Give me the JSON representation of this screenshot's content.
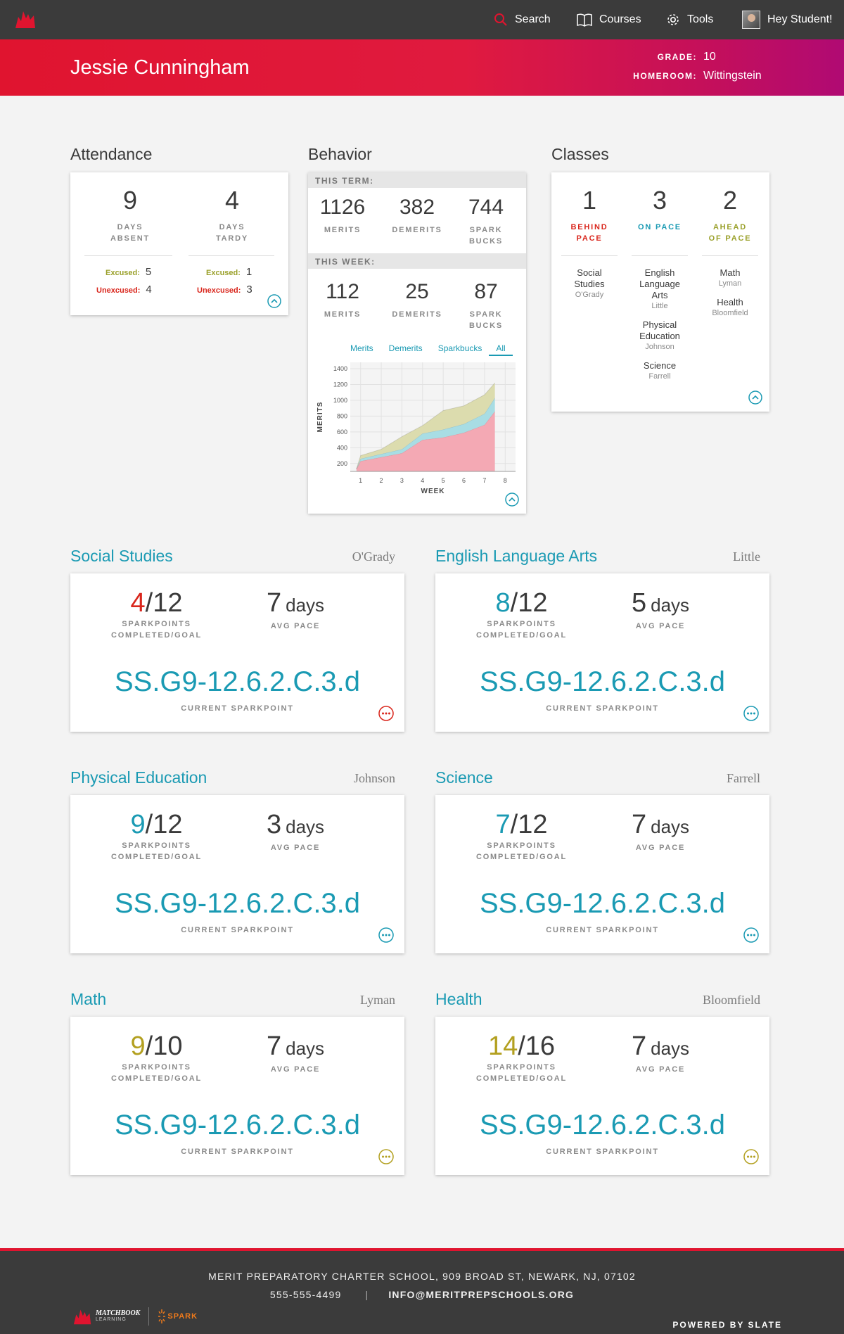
{
  "nav": {
    "search_label": "Search",
    "courses_label": "Courses",
    "tools_label": "Tools",
    "user_label": "Hey Student!"
  },
  "student": {
    "name": "Jessie Cunningham",
    "grade_label": "GRADE:",
    "grade": "10",
    "homeroom_label": "HOMEROOM:",
    "homeroom": "Wittingstein"
  },
  "attendance": {
    "title": "Attendance",
    "absent": {
      "value": "9",
      "label_1": "DAYS",
      "label_2": "ABSENT",
      "excused_label": "Excused:",
      "excused": "5",
      "unexcused_label": "Unexcused:",
      "unexcused": "4"
    },
    "tardy": {
      "value": "4",
      "label_1": "DAYS",
      "label_2": "TARDY",
      "excused_label": "Excused:",
      "excused": "1",
      "unexcused_label": "Unexcused:",
      "unexcused": "3"
    }
  },
  "behavior": {
    "title": "Behavior",
    "term_label": "THIS TERM:",
    "term": {
      "merits": "1126",
      "demerits": "382",
      "spark": "744"
    },
    "week_label": "THIS WEEK:",
    "week": {
      "merits": "112",
      "demerits": "25",
      "spark": "87"
    },
    "merits_label": "MERITS",
    "demerits_label": "DEMERITS",
    "spark_label_1": "SPARK",
    "spark_label_2": "BUCKS",
    "tabs": [
      "Merits",
      "Demerits",
      "Sparkbucks",
      "All"
    ]
  },
  "chart_data": {
    "type": "area",
    "stacked": true,
    "title": "",
    "xlabel": "WEEK",
    "ylabel": "MERITS",
    "x": [
      0.8,
      1,
      2,
      3,
      4,
      5,
      6,
      7,
      7.5
    ],
    "xticks": [
      1,
      2,
      3,
      4,
      5,
      6,
      7,
      8
    ],
    "yticks": [
      200,
      400,
      600,
      800,
      1000,
      1200,
      1400
    ],
    "ylim": [
      100,
      1480
    ],
    "xlim": [
      0.5,
      8.5
    ],
    "grid": true,
    "series": [
      {
        "name": "Merits",
        "color": "#f4a9b4",
        "values": [
          130,
          230,
          280,
          330,
          500,
          530,
          590,
          690,
          860
        ]
      },
      {
        "name": "Demerits",
        "color": "#a8dde4",
        "values": [
          0,
          30,
          40,
          50,
          80,
          100,
          110,
          140,
          170
        ]
      },
      {
        "name": "Sparkbucks",
        "color": "#dcdcae",
        "values": [
          0,
          40,
          60,
          160,
          100,
          240,
          230,
          240,
          190
        ]
      }
    ]
  },
  "classes": {
    "title": "Classes",
    "behind": {
      "value": "1",
      "label_1": "BEHIND",
      "label_2": "PACE",
      "items": [
        {
          "name": "Social Studies",
          "teacher": "O'Grady"
        }
      ]
    },
    "onpace": {
      "value": "3",
      "label_1": "ON PACE",
      "items": [
        {
          "name": "English Language Arts",
          "teacher": "Little"
        },
        {
          "name": "Physical Education",
          "teacher": "Johnson"
        },
        {
          "name": "Science",
          "teacher": "Farrell"
        }
      ]
    },
    "ahead": {
      "value": "2",
      "label_1": "AHEAD",
      "label_2": "OF PACE",
      "items": [
        {
          "name": "Math",
          "teacher": "Lyman"
        },
        {
          "name": "Health",
          "teacher": "Bloomfield"
        }
      ]
    }
  },
  "course_labels": {
    "sparkpoints_1": "SPARKPOINTS",
    "sparkpoints_2": "COMPLETED/GOAL",
    "avg_pace": "AVG PACE",
    "current": "CURRENT SPARKPOINT"
  },
  "courses": [
    {
      "title": "Social Studies",
      "teacher": "O'Grady",
      "completed": "4",
      "goal": "/12",
      "completed_color": "#d9261c",
      "pace_num": "7",
      "pace_unit": "days",
      "sparkpoint": "SS.G9-12.6.2.C.3.d",
      "button_color": "#d9261c"
    },
    {
      "title": "English Language Arts",
      "teacher": "Little",
      "completed": "8",
      "goal": "/12",
      "completed_color": "#1a9ab3",
      "pace_num": "5",
      "pace_unit": "days",
      "sparkpoint": "SS.G9-12.6.2.C.3.d",
      "button_color": "#1a9ab3"
    },
    {
      "title": "Physical Education",
      "teacher": "Johnson",
      "completed": "9",
      "goal": "/12",
      "completed_color": "#1a9ab3",
      "pace_num": "3",
      "pace_unit": "days",
      "sparkpoint": "SS.G9-12.6.2.C.3.d",
      "button_color": "#1a9ab3"
    },
    {
      "title": "Science",
      "teacher": "Farrell",
      "completed": "7",
      "goal": "/12",
      "completed_color": "#1a9ab3",
      "pace_num": "7",
      "pace_unit": "days",
      "sparkpoint": "SS.G9-12.6.2.C.3.d",
      "button_color": "#1a9ab3"
    },
    {
      "title": "Math",
      "teacher": "Lyman",
      "completed": "9",
      "goal": "/10",
      "completed_color": "#b3a020",
      "pace_num": "7",
      "pace_unit": "days",
      "sparkpoint": "SS.G9-12.6.2.C.3.d",
      "button_color": "#b3a020"
    },
    {
      "title": "Health",
      "teacher": "Bloomfield",
      "completed": "14",
      "goal": "/16",
      "completed_color": "#b3a020",
      "pace_num": "7",
      "pace_unit": "days",
      "sparkpoint": "SS.G9-12.6.2.C.3.d",
      "button_color": "#b3a020"
    }
  ],
  "footer": {
    "address": "MERIT PREPARATORY CHARTER SCHOOL, 909 BROAD ST, NEWARK, NJ, 07102",
    "phone": "555-555-4499",
    "separator": "|",
    "email": "INFO@MERITPREPSCHOOLS.ORG",
    "brand_1": "MATCHBOOK",
    "brand_1_sub": "LEARNING",
    "brand_2": "SPARK",
    "powered": "POWERED BY SLATE"
  }
}
